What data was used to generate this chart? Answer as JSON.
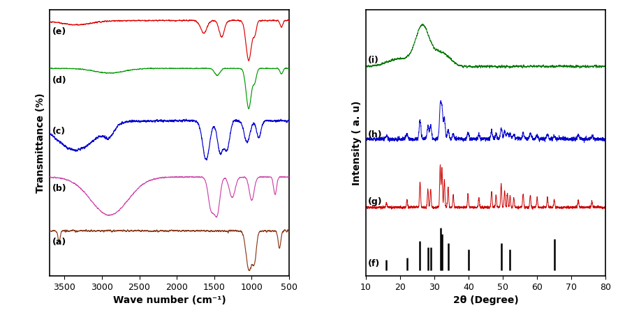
{
  "ftir_xlim": [
    500,
    3700
  ],
  "ftir_xlabel": "Wave number (cm⁻¹)",
  "ftir_ylabel": "Transmittance (%)",
  "xrd_xlim": [
    10,
    80
  ],
  "xrd_xlabel": "2θ (Degree)",
  "xrd_ylabel": "Intensity ( a. u)",
  "label_a": "(a)",
  "label_b": "(b)",
  "label_c": "(c)",
  "label_d": "(d)",
  "label_e": "(e)",
  "label_f": "(f)",
  "label_g": "(g)",
  "label_h": "(h)",
  "label_i": "(i)",
  "color_a": "#8B3A1A",
  "color_b": "#CC44AA",
  "color_c": "#0000CC",
  "color_d": "#009900",
  "color_e": "#DD0000",
  "color_g": "#CC0000",
  "color_h": "#0000CC",
  "color_i": "#007700",
  "color_f": "#000000",
  "jcpds_positions": [
    16,
    22,
    25.8,
    28.1,
    29.0,
    31.8,
    32.2,
    34.0,
    40.0,
    49.5,
    52.0,
    65.0
  ],
  "jcpds_heights": [
    0.25,
    0.3,
    0.7,
    0.55,
    0.55,
    1.0,
    0.85,
    0.65,
    0.5,
    0.65,
    0.5,
    0.75
  ]
}
